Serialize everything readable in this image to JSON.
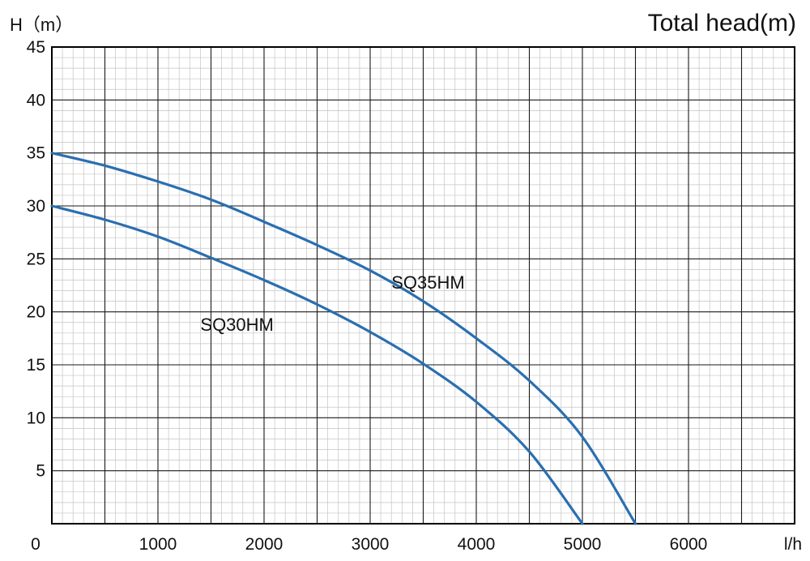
{
  "chart_data": {
    "type": "line",
    "title": "Total head(m)",
    "ylabel": "H（m）",
    "xlabel": "l/h",
    "origin_label": "0",
    "xlim": [
      0,
      7000
    ],
    "ylim": [
      0,
      45
    ],
    "x_ticks": [
      1000,
      2000,
      3000,
      4000,
      5000,
      6000
    ],
    "y_ticks": [
      5,
      10,
      15,
      20,
      25,
      30,
      35,
      40,
      45
    ],
    "grid": true,
    "series": [
      {
        "name": "SQ35HM",
        "color": "#2a6fb0",
        "x": [
          0,
          500,
          1000,
          1500,
          2000,
          2500,
          3000,
          3500,
          4000,
          4500,
          5000,
          5500
        ],
        "y": [
          35,
          33.8,
          32.3,
          30.6,
          28.5,
          26.3,
          23.9,
          21,
          17.5,
          13.5,
          8.2,
          0
        ]
      },
      {
        "name": "SQ30HM",
        "color": "#2a6fb0",
        "x": [
          0,
          500,
          1000,
          1500,
          2000,
          2500,
          3000,
          3500,
          4000,
          4500,
          5000
        ],
        "y": [
          30,
          28.7,
          27.1,
          25.1,
          23,
          20.7,
          18.1,
          15.1,
          11.5,
          6.8,
          0
        ]
      }
    ]
  }
}
